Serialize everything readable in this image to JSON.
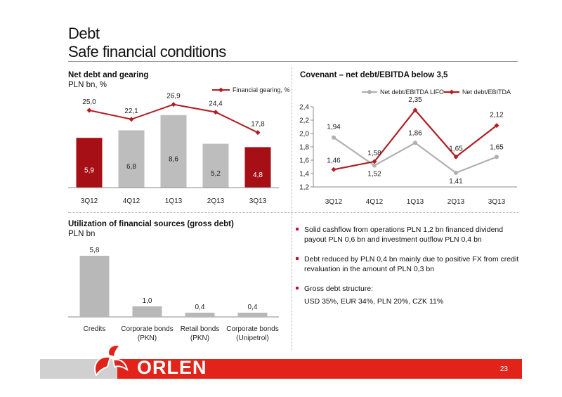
{
  "header": {
    "title_line1": "Debt",
    "title_line2": "Safe financial conditions"
  },
  "page_number": "23",
  "logo": {
    "text": "ORLEN"
  },
  "colors": {
    "red": "#c8102e",
    "dark_red": "#a50f15",
    "grey": "#bdbdbd",
    "light_grey": "#b8b8b8"
  },
  "chart_data": [
    {
      "id": "net-debt",
      "type": "bar+line",
      "title": "Net debt and gearing",
      "subtitle": "PLN bn, %",
      "categories": [
        "3Q12",
        "4Q12",
        "1Q13",
        "2Q13",
        "3Q13"
      ],
      "bars": {
        "values": [
          5.9,
          6.8,
          8.6,
          5.2,
          4.8
        ],
        "labels": [
          "5,9",
          "6,8",
          "8,6",
          "5,2",
          "4,8"
        ],
        "colors": [
          "red",
          "grey",
          "grey",
          "grey",
          "red"
        ]
      },
      "line": {
        "name": "Financial gearing, %",
        "values": [
          25.0,
          22.1,
          26.9,
          24.4,
          17.8
        ],
        "labels": [
          "25,0",
          "22,1",
          "26,9",
          "24,4",
          "17,8"
        ]
      }
    },
    {
      "id": "covenant",
      "type": "line",
      "title": "Covenant – net debt/EBITDA below 3,5",
      "categories": [
        "3Q12",
        "4Q12",
        "1Q13",
        "2Q13",
        "3Q13"
      ],
      "yticks": [
        "2,4",
        "2,2",
        "2,0",
        "1,8",
        "1,6",
        "1,4",
        "1,2"
      ],
      "ylim": [
        1.2,
        2.4
      ],
      "series": [
        {
          "name": "Net debt/EBITDA LIFO",
          "values": [
            1.94,
            1.52,
            1.86,
            1.41,
            1.65
          ],
          "labels": [
            "1,94",
            "1,52",
            "1,86",
            "1,41",
            "1,65"
          ]
        },
        {
          "name": "Net debt/EBITDA",
          "values": [
            1.46,
            1.58,
            2.35,
            1.65,
            2.12
          ],
          "labels": [
            "1,46",
            "1,58",
            "2,35",
            "1,65",
            "2,12"
          ]
        }
      ]
    },
    {
      "id": "utilization",
      "type": "bar",
      "title": "Utilization of financial sources (gross debt)",
      "subtitle": "PLN bn",
      "categories": [
        [
          "Credits"
        ],
        [
          "Corporate bonds",
          "(PKN)"
        ],
        [
          "Retail bonds",
          "(PKN)"
        ],
        [
          "Corporate bonds",
          "(Unipetrol)"
        ]
      ],
      "values": [
        5.8,
        1.0,
        0.4,
        0.4
      ],
      "labels": [
        "5,8",
        "1,0",
        "0,4",
        "0,4"
      ]
    }
  ],
  "bullets": [
    "Solid cashflow from operations PLN 1,2 bn financed dividend payout PLN 0,6 bn and investment outflow PLN 0,4 bn",
    "Debt reduced by PLN 0,4 bn mainly due to positive FX from credit revaluation in the amount of PLN 0,3 bn",
    "Gross debt structure:"
  ],
  "bullet_extra": "USD 35%, EUR 34%, PLN 20%, CZK 11%"
}
